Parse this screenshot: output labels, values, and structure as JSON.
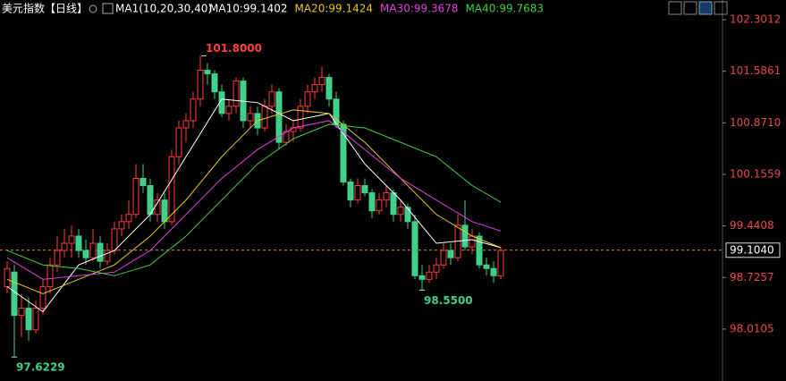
{
  "chart_data": {
    "type": "candlestick",
    "title": "美元指数",
    "period": "【日线】",
    "indicator": "MA1(10,20,30,40)",
    "ylim": [
      97.29,
      102.574
    ],
    "yticks": [
      102.3012,
      101.5861,
      {
        "value": 100.871,
        "label": "100.8710"
      },
      100.1559,
      99.4408,
      98.7257,
      98.0105
    ],
    "up_color": "#ff3c3c",
    "down_color": "#3fd08c",
    "candles": [
      [
        98.6,
        98.95,
        98.5,
        98.85
      ],
      [
        98.8,
        98.9,
        97.6229,
        98.2
      ],
      [
        98.2,
        98.5,
        97.9,
        98.3
      ],
      [
        98.3,
        98.45,
        97.85,
        98.0
      ],
      [
        98.0,
        98.4,
        97.95,
        98.3
      ],
      [
        98.3,
        98.7,
        98.2,
        98.6
      ],
      [
        98.6,
        99.0,
        98.5,
        98.9
      ],
      [
        98.9,
        99.3,
        98.8,
        99.1
      ],
      [
        99.1,
        99.4,
        99.0,
        99.2
      ],
      [
        99.2,
        99.45,
        99.0,
        99.3
      ],
      [
        99.3,
        99.4,
        99.0,
        99.1
      ],
      [
        99.1,
        99.25,
        98.9,
        99.0
      ],
      [
        99.0,
        99.4,
        98.95,
        99.2
      ],
      [
        99.2,
        99.3,
        98.85,
        98.95
      ],
      [
        98.95,
        99.2,
        98.9,
        99.1
      ],
      [
        99.1,
        99.5,
        99.05,
        99.4
      ],
      [
        99.4,
        99.6,
        99.3,
        99.5
      ],
      [
        99.5,
        99.8,
        99.4,
        99.6
      ],
      [
        99.6,
        100.3,
        99.55,
        100.1
      ],
      [
        100.1,
        100.3,
        99.9,
        100.0
      ],
      [
        100.0,
        100.1,
        99.5,
        99.6
      ],
      [
        99.6,
        99.9,
        99.5,
        99.8
      ],
      [
        99.8,
        99.9,
        99.4,
        99.5
      ],
      [
        99.5,
        100.5,
        99.45,
        100.4
      ],
      [
        100.4,
        100.9,
        100.3,
        100.8
      ],
      [
        100.8,
        101.0,
        100.6,
        100.9
      ],
      [
        100.9,
        101.3,
        100.8,
        101.2
      ],
      [
        101.2,
        101.8,
        101.1,
        101.6
      ],
      [
        101.6,
        101.7,
        101.4,
        101.55
      ],
      [
        101.55,
        101.6,
        101.2,
        101.3
      ],
      [
        101.3,
        101.4,
        100.95,
        101.0
      ],
      [
        101.0,
        101.2,
        100.9,
        101.1
      ],
      [
        101.1,
        101.5,
        101.0,
        101.45
      ],
      [
        101.45,
        101.5,
        100.8,
        100.9
      ],
      [
        100.9,
        101.1,
        100.8,
        101.0
      ],
      [
        101.0,
        101.1,
        100.7,
        100.8
      ],
      [
        100.8,
        101.2,
        100.75,
        101.1
      ],
      [
        101.1,
        101.4,
        101.0,
        101.3
      ],
      [
        101.3,
        101.35,
        100.5,
        100.6
      ],
      [
        100.6,
        100.85,
        100.55,
        100.75
      ],
      [
        100.75,
        100.9,
        100.6,
        100.8
      ],
      [
        100.8,
        101.2,
        100.75,
        101.1
      ],
      [
        101.1,
        101.4,
        101.0,
        101.3
      ],
      [
        101.3,
        101.5,
        101.2,
        101.4
      ],
      [
        101.4,
        101.65,
        101.3,
        101.5
      ],
      [
        101.5,
        101.55,
        101.1,
        101.2
      ],
      [
        101.2,
        101.3,
        100.8,
        100.85
      ],
      [
        100.85,
        100.9,
        100.0,
        100.05
      ],
      [
        100.05,
        100.1,
        99.7,
        99.8
      ],
      [
        99.8,
        100.1,
        99.75,
        100.0
      ],
      [
        100.0,
        100.1,
        99.85,
        99.9
      ],
      [
        99.9,
        99.95,
        99.55,
        99.65
      ],
      [
        99.65,
        99.9,
        99.6,
        99.8
      ],
      [
        99.8,
        100.0,
        99.7,
        99.9
      ],
      [
        99.9,
        99.95,
        99.5,
        99.6
      ],
      [
        99.6,
        99.8,
        99.5,
        99.7
      ],
      [
        99.7,
        99.75,
        99.4,
        99.5
      ],
      [
        99.5,
        99.6,
        98.7,
        98.75
      ],
      [
        98.75,
        98.9,
        98.55,
        98.7
      ],
      [
        98.7,
        98.9,
        98.65,
        98.8
      ],
      [
        98.8,
        99.0,
        98.7,
        98.9
      ],
      [
        98.9,
        99.2,
        98.85,
        99.1
      ],
      [
        99.1,
        99.2,
        98.9,
        99.0
      ],
      [
        99.0,
        99.6,
        98.95,
        99.45
      ],
      [
        99.45,
        99.8,
        99.1,
        99.15
      ],
      [
        99.15,
        99.4,
        99.05,
        99.3
      ],
      [
        99.3,
        99.35,
        98.85,
        98.9
      ],
      [
        98.9,
        99.0,
        98.75,
        98.85
      ],
      [
        98.85,
        98.95,
        98.65,
        98.75
      ],
      [
        98.75,
        99.15,
        98.7,
        99.1
      ]
    ],
    "ma_x": [
      0,
      5,
      10,
      15,
      20,
      25,
      30,
      35,
      40,
      45,
      50,
      55,
      60,
      65,
      69
    ],
    "series": [
      {
        "name": "MA10:99.1402",
        "color": "#ffffff",
        "values": [
          98.6,
          98.25,
          98.9,
          99.1,
          99.6,
          100.4,
          101.2,
          101.15,
          100.9,
          101.0,
          100.3,
          99.8,
          99.2,
          99.25,
          99.14
        ]
      },
      {
        "name": "MA20:99.1424",
        "color": "#e8c81a",
        "values": [
          98.7,
          98.5,
          98.7,
          98.9,
          99.3,
          99.8,
          100.4,
          100.9,
          101.05,
          101.0,
          100.6,
          100.1,
          99.6,
          99.3,
          99.14
        ]
      },
      {
        "name": "MA30:99.3678",
        "color": "#e040e0",
        "values": [
          99.0,
          98.7,
          98.75,
          98.8,
          99.1,
          99.6,
          100.1,
          100.5,
          100.8,
          100.9,
          100.5,
          100.1,
          99.8,
          99.5,
          99.37
        ]
      },
      {
        "name": "MA40:99.7683",
        "color": "#3cd23c",
        "values": [
          99.1,
          98.9,
          98.85,
          98.75,
          98.9,
          99.3,
          99.8,
          100.3,
          100.65,
          100.85,
          100.8,
          100.6,
          100.4,
          100.0,
          99.77
        ]
      }
    ],
    "current_price": {
      "value": 99.104,
      "label": "99.1040"
    },
    "annotations": [
      {
        "value": 101.8,
        "label": "101.8000",
        "color": "#ff4040"
      },
      {
        "value": 97.6229,
        "label": "97.6229",
        "color": "#3fd08c"
      },
      {
        "value": 98.55,
        "label": "98.5500",
        "color": "#3fd08c"
      }
    ]
  }
}
